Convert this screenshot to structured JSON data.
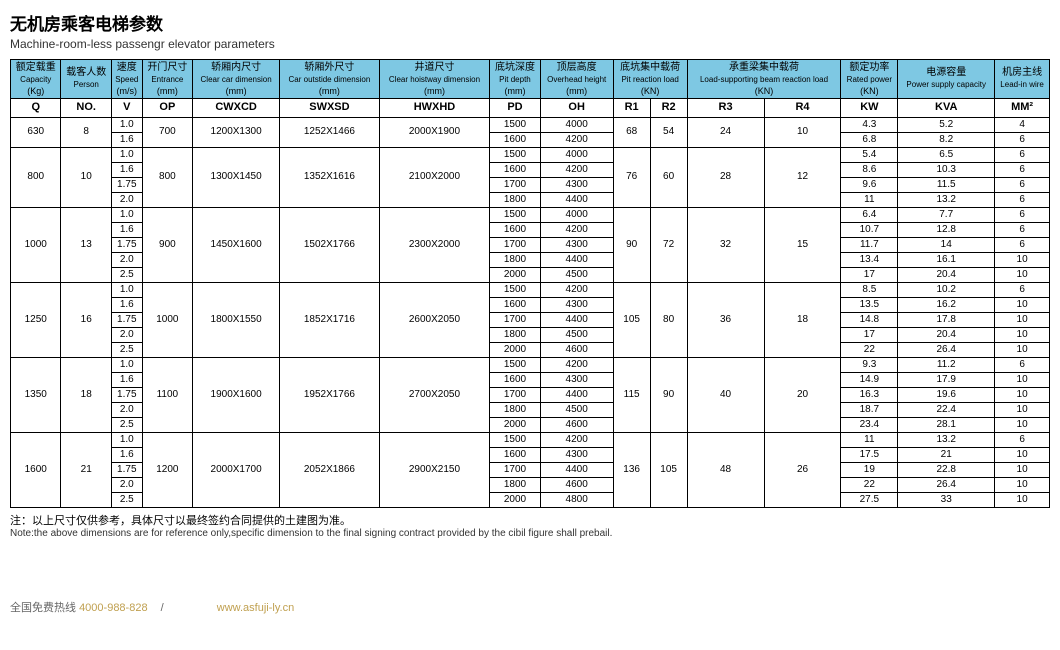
{
  "title_zh": "无机房乘客电梯参数",
  "title_en": "Machine-room-less passengr elevator parameters",
  "headers": [
    {
      "zh": "额定载重",
      "en": "Capacity",
      "unit": "(Kg)",
      "sym": "Q"
    },
    {
      "zh": "载客人数",
      "en": "Person",
      "unit": "",
      "sym": "NO."
    },
    {
      "zh": "速度",
      "en": "Speed",
      "unit": "(m/s)",
      "sym": "V"
    },
    {
      "zh": "开门尺寸",
      "en": "Entrance",
      "unit": "(mm)",
      "sym": "OP"
    },
    {
      "zh": "轿厢内尺寸",
      "en": "Clear car dimension",
      "unit": "(mm)",
      "sym": "CWXCD"
    },
    {
      "zh": "轿厢外尺寸",
      "en": "Car outstide dimension",
      "unit": "(mm)",
      "sym": "SWXSD"
    },
    {
      "zh": "井道尺寸",
      "en": "Clear hoistway dimension",
      "unit": "(mm)",
      "sym": "HWXHD"
    },
    {
      "zh": "底坑深度",
      "en": "Pit depth",
      "unit": "(mm)",
      "sym": "PD"
    },
    {
      "zh": "顶层高度",
      "en": "Overhead height",
      "unit": "(mm)",
      "sym": "OH"
    },
    {
      "zh": "底坑集中载荷",
      "en": "Pit reaction load",
      "unit": "(KN)",
      "sym": "R1",
      "sym2": "R2"
    },
    {
      "zh": "承重梁集中载荷",
      "en": "Load-supporting beam reaction load",
      "unit": "(KN)",
      "sym": "R3",
      "sym2": "R4"
    },
    {
      "zh": "额定功率",
      "en": "Rated power",
      "unit": "(KN)",
      "sym": "KW"
    },
    {
      "zh": "电源容量",
      "en": "Power supply capacity",
      "unit": "",
      "sym": "KVA"
    },
    {
      "zh": "机房主线",
      "en": "Lead-in wire",
      "unit": "",
      "sym": "MM²"
    }
  ],
  "groups": [
    {
      "q": "630",
      "no": "8",
      "op": "700",
      "cw": "1200X1300",
      "sw": "1252X1466",
      "hw": "2000X1900",
      "r1": "68",
      "r2": "54",
      "r3": "24",
      "r4": "10",
      "rows": [
        {
          "v": "1.0",
          "pd": "1500",
          "oh": "4000",
          "kw": "4.3",
          "kva": "5.2",
          "mm": "4"
        },
        {
          "v": "1.6",
          "pd": "1600",
          "oh": "4200",
          "kw": "6.8",
          "kva": "8.2",
          "mm": "6"
        }
      ]
    },
    {
      "q": "800",
      "no": "10",
      "op": "800",
      "cw": "1300X1450",
      "sw": "1352X1616",
      "hw": "2100X2000",
      "r1": "76",
      "r2": "60",
      "r3": "28",
      "r4": "12",
      "rows": [
        {
          "v": "1.0",
          "pd": "1500",
          "oh": "4000",
          "kw": "5.4",
          "kva": "6.5",
          "mm": "6"
        },
        {
          "v": "1.6",
          "pd": "1600",
          "oh": "4200",
          "kw": "8.6",
          "kva": "10.3",
          "mm": "6"
        },
        {
          "v": "1.75",
          "pd": "1700",
          "oh": "4300",
          "kw": "9.6",
          "kva": "11.5",
          "mm": "6"
        },
        {
          "v": "2.0",
          "pd": "1800",
          "oh": "4400",
          "kw": "11",
          "kva": "13.2",
          "mm": "6"
        }
      ]
    },
    {
      "q": "1000",
      "no": "13",
      "op": "900",
      "cw": "1450X1600",
      "sw": "1502X1766",
      "hw": "2300X2000",
      "r1": "90",
      "r2": "72",
      "r3": "32",
      "r4": "15",
      "rows": [
        {
          "v": "1.0",
          "pd": "1500",
          "oh": "4000",
          "kw": "6.4",
          "kva": "7.7",
          "mm": "6"
        },
        {
          "v": "1.6",
          "pd": "1600",
          "oh": "4200",
          "kw": "10.7",
          "kva": "12.8",
          "mm": "6"
        },
        {
          "v": "1.75",
          "pd": "1700",
          "oh": "4300",
          "kw": "11.7",
          "kva": "14",
          "mm": "6"
        },
        {
          "v": "2.0",
          "pd": "1800",
          "oh": "4400",
          "kw": "13.4",
          "kva": "16.1",
          "mm": "10"
        },
        {
          "v": "2.5",
          "pd": "2000",
          "oh": "4500",
          "kw": "17",
          "kva": "20.4",
          "mm": "10"
        }
      ]
    },
    {
      "q": "1250",
      "no": "16",
      "op": "1000",
      "cw": "1800X1550",
      "sw": "1852X1716",
      "hw": "2600X2050",
      "r1": "105",
      "r2": "80",
      "r3": "36",
      "r4": "18",
      "rows": [
        {
          "v": "1.0",
          "pd": "1500",
          "oh": "4200",
          "kw": "8.5",
          "kva": "10.2",
          "mm": "6"
        },
        {
          "v": "1.6",
          "pd": "1600",
          "oh": "4300",
          "kw": "13.5",
          "kva": "16.2",
          "mm": "10"
        },
        {
          "v": "1.75",
          "pd": "1700",
          "oh": "4400",
          "kw": "14.8",
          "kva": "17.8",
          "mm": "10"
        },
        {
          "v": "2.0",
          "pd": "1800",
          "oh": "4500",
          "kw": "17",
          "kva": "20.4",
          "mm": "10"
        },
        {
          "v": "2.5",
          "pd": "2000",
          "oh": "4600",
          "kw": "22",
          "kva": "26.4",
          "mm": "10"
        }
      ]
    },
    {
      "q": "1350",
      "no": "18",
      "op": "1100",
      "cw": "1900X1600",
      "sw": "1952X1766",
      "hw": "2700X2050",
      "r1": "115",
      "r2": "90",
      "r3": "40",
      "r4": "20",
      "rows": [
        {
          "v": "1.0",
          "pd": "1500",
          "oh": "4200",
          "kw": "9.3",
          "kva": "11.2",
          "mm": "6"
        },
        {
          "v": "1.6",
          "pd": "1600",
          "oh": "4300",
          "kw": "14.9",
          "kva": "17.9",
          "mm": "10"
        },
        {
          "v": "1.75",
          "pd": "1700",
          "oh": "4400",
          "kw": "16.3",
          "kva": "19.6",
          "mm": "10"
        },
        {
          "v": "2.0",
          "pd": "1800",
          "oh": "4500",
          "kw": "18.7",
          "kva": "22.4",
          "mm": "10"
        },
        {
          "v": "2.5",
          "pd": "2000",
          "oh": "4600",
          "kw": "23.4",
          "kva": "28.1",
          "mm": "10"
        }
      ]
    },
    {
      "q": "1600",
      "no": "21",
      "op": "1200",
      "cw": "2000X1700",
      "sw": "2052X1866",
      "hw": "2900X2150",
      "r1": "136",
      "r2": "105",
      "r3": "48",
      "r4": "26",
      "rows": [
        {
          "v": "1.0",
          "pd": "1500",
          "oh": "4200",
          "kw": "11",
          "kva": "13.2",
          "mm": "6"
        },
        {
          "v": "1.6",
          "pd": "1600",
          "oh": "4300",
          "kw": "17.5",
          "kva": "21",
          "mm": "10"
        },
        {
          "v": "1.75",
          "pd": "1700",
          "oh": "4400",
          "kw": "19",
          "kva": "22.8",
          "mm": "10"
        },
        {
          "v": "2.0",
          "pd": "1800",
          "oh": "4600",
          "kw": "22",
          "kva": "26.4",
          "mm": "10"
        },
        {
          "v": "2.5",
          "pd": "2000",
          "oh": "4800",
          "kw": "27.5",
          "kva": "33",
          "mm": "10"
        }
      ]
    }
  ],
  "note_zh": "注：以上尺寸仅供参考，具体尺寸以最终签约合同提供的土建图为准。",
  "note_en": "Note:the above dimensions are for reference only,specific dimension to the final signing contract provided by the cibil figure shall prebail.",
  "footer_label": "全国免费热线 ",
  "footer_phone": "4000-988-828",
  "footer_url": "www.asfuji-ly.cn"
}
